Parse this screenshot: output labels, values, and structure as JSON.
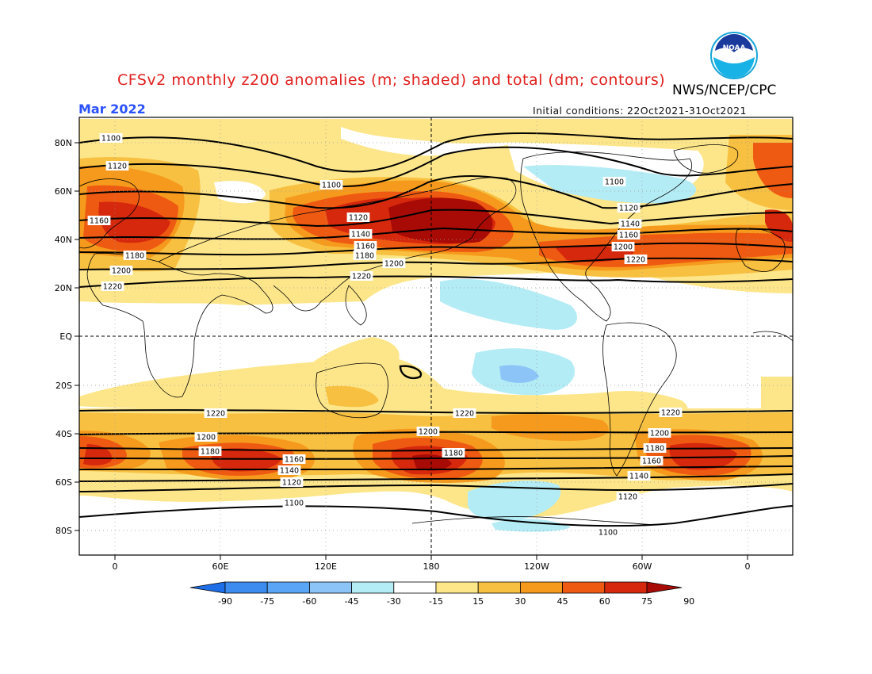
{
  "title": "CFSv2 monthly z200 anomalies (m; shaded) and total (dm; contours)",
  "agency": "NWS/NCEP/CPC",
  "logo_text": "NOAA",
  "month": "Mar 2022",
  "initial_conditions": "Initial conditions: 22Oct2021-31Oct2021",
  "lat_labels": [
    "80N",
    "60N",
    "40N",
    "20N",
    "EQ",
    "20S",
    "40S",
    "60S",
    "80S"
  ],
  "lon_labels": [
    "0",
    "60E",
    "120E",
    "180",
    "120W",
    "60W",
    "0"
  ],
  "colorbar": {
    "ticks": [
      "-90",
      "-75",
      "-60",
      "-45",
      "-30",
      "-15",
      "15",
      "30",
      "45",
      "60",
      "75",
      "90"
    ],
    "colors": [
      "#1e6ee8",
      "#3c8cf0",
      "#5aa5f5",
      "#8cc4f7",
      "#b4ecf5",
      "#ffffff",
      "#fde68a",
      "#f8c040",
      "#f59a1c",
      "#ef5a12",
      "#d6280c",
      "#a80b06"
    ]
  },
  "contour_labels": {
    "north": [
      "1100",
      "1100",
      "1100",
      "1120",
      "1120",
      "1120",
      "1140",
      "1140",
      "1160",
      "1160",
      "1160",
      "1180",
      "1180",
      "1200",
      "1200",
      "1200",
      "1220",
      "1220",
      "1220"
    ],
    "south": [
      "1220",
      "1220",
      "1220",
      "1200",
      "1200",
      "1200",
      "1180",
      "1180",
      "1180",
      "1160",
      "1160",
      "1140",
      "1140",
      "1120",
      "1120",
      "1100",
      "1100"
    ]
  }
}
